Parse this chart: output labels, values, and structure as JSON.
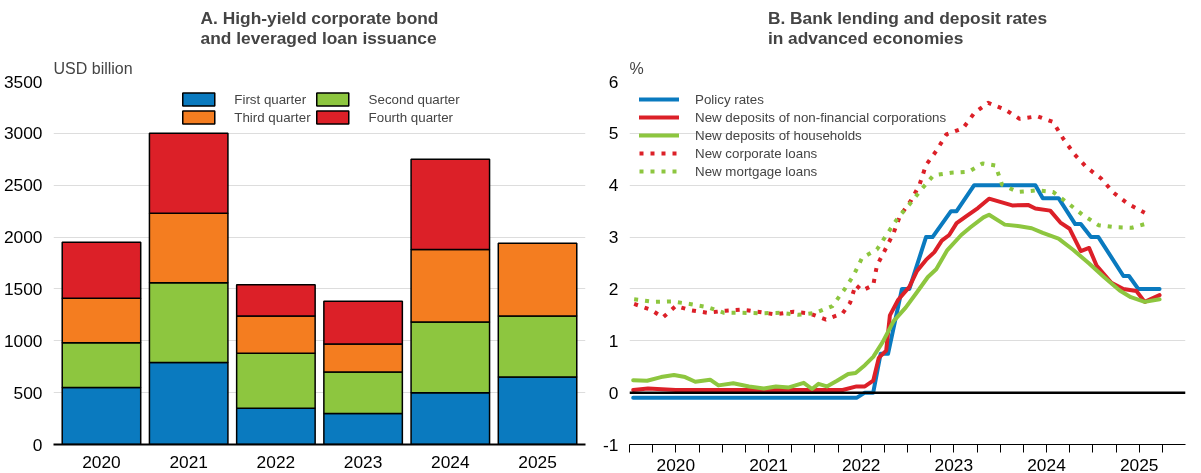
{
  "chart_data": [
    {
      "type": "bar",
      "title": "A. High-yield corporate bond\nand leveraged loan issuance",
      "ylabel": "USD billion",
      "stacked": true,
      "categories": [
        "2020",
        "2021",
        "2022",
        "2023",
        "2024",
        "2025"
      ],
      "series": [
        {
          "name": "First quarter",
          "color": "#0a7abf",
          "values": [
            550,
            790,
            350,
            300,
            500,
            650
          ]
        },
        {
          "name": "Second quarter",
          "color": "#8dc63f",
          "values": [
            430,
            770,
            530,
            400,
            680,
            590
          ]
        },
        {
          "name": "Third quarter",
          "color": "#f47d20",
          "values": [
            430,
            670,
            360,
            270,
            700,
            700
          ]
        },
        {
          "name": "Fourth quarter",
          "color": "#dc2028",
          "values": [
            540,
            770,
            300,
            410,
            870,
            null
          ]
        }
      ],
      "ylim": [
        0,
        3500
      ],
      "yticks": [
        0,
        500,
        1000,
        1500,
        2000,
        2500,
        3000,
        3500
      ],
      "grid": "y",
      "legend": "top"
    },
    {
      "type": "line",
      "title": "B. Bank lending and deposit rates\nin advanced economies",
      "ylabel": "%",
      "marker": "none",
      "series": [
        {
          "name": "Policy rates",
          "color": "#0a7abf",
          "line_style": "solid",
          "x": [
            2020.04,
            2022.45,
            2022.54,
            2022.63,
            2022.71,
            2022.79,
            2022.94,
            2023.02,
            2023.2,
            2023.27,
            2023.47,
            2023.53,
            2023.72,
            2024.38,
            2024.46,
            2024.63,
            2024.81,
            2024.87,
            2024.98,
            2025.06,
            2025.33,
            2025.39,
            2025.49,
            2025.72
          ],
          "values": [
            -0.1,
            -0.1,
            0,
            0,
            0.75,
            0.75,
            2,
            2,
            3,
            3,
            3.5,
            3.5,
            4,
            4,
            3.75,
            3.75,
            3.25,
            3.25,
            3,
            3,
            2.25,
            2.25,
            2,
            2
          ]
        },
        {
          "name": "New deposits of non-financial corporations",
          "color": "#dc2028",
          "line_style": "solid",
          "x": [
            2020.04,
            2020.2,
            2020.5,
            2021.0,
            2021.5,
            2022.0,
            2022.3,
            2022.45,
            2022.54,
            2022.63,
            2022.69,
            2022.77,
            2022.81,
            2022.9,
            2023.02,
            2023.1,
            2023.2,
            2023.29,
            2023.37,
            2023.45,
            2023.53,
            2023.64,
            2023.76,
            2023.88,
            2024.13,
            2024.3,
            2024.38,
            2024.54,
            2024.65,
            2024.75,
            2024.87,
            2024.96,
            2025.04,
            2025.2,
            2025.33,
            2025.47,
            2025.56,
            2025.72
          ],
          "values": [
            0.05,
            0.08,
            0.05,
            0.05,
            0.05,
            0.05,
            0.05,
            0.12,
            0.12,
            0.23,
            0.67,
            0.81,
            1.49,
            1.79,
            2.04,
            2.34,
            2.56,
            2.71,
            2.93,
            3.04,
            3.27,
            3.41,
            3.56,
            3.74,
            3.61,
            3.62,
            3.55,
            3.51,
            3.28,
            3.16,
            2.73,
            2.79,
            2.45,
            2.12,
            2.0,
            1.96,
            1.75,
            1.88
          ]
        },
        {
          "name": "New deposits of households",
          "color": "#8dc63f",
          "line_style": "solid",
          "x": [
            2020.04,
            2020.19,
            2020.34,
            2020.48,
            2020.6,
            2020.71,
            2020.87,
            2020.96,
            2021.12,
            2021.29,
            2021.45,
            2021.58,
            2021.72,
            2021.88,
            2021.97,
            2022.04,
            2022.13,
            2022.24,
            2022.36,
            2022.44,
            2022.54,
            2022.63,
            2022.73,
            2022.85,
            2022.98,
            2023.1,
            2023.22,
            2023.31,
            2023.43,
            2023.58,
            2023.68,
            2023.82,
            2023.88,
            2024.05,
            2024.21,
            2024.34,
            2024.46,
            2024.63,
            2024.79,
            2024.96,
            2025.12,
            2025.29,
            2025.41,
            2025.56,
            2025.72
          ],
          "values": [
            0.24,
            0.23,
            0.3,
            0.34,
            0.3,
            0.21,
            0.25,
            0.14,
            0.18,
            0.12,
            0.08,
            0.12,
            0.1,
            0.19,
            0.07,
            0.17,
            0.12,
            0.23,
            0.36,
            0.38,
            0.53,
            0.69,
            0.97,
            1.38,
            1.64,
            1.93,
            2.23,
            2.38,
            2.75,
            3.04,
            3.19,
            3.38,
            3.43,
            3.24,
            3.21,
            3.17,
            3.08,
            2.97,
            2.75,
            2.49,
            2.23,
            1.97,
            1.84,
            1.75,
            1.8
          ]
        },
        {
          "name": "New corporate loans",
          "color": "#dc2028",
          "line_style": "dotted",
          "x": [
            2020.05,
            2020.23,
            2020.36,
            2020.5,
            2020.66,
            2020.84,
            2021.04,
            2021.22,
            2021.38,
            2021.57,
            2021.77,
            2021.94,
            2022.12,
            2022.3,
            2022.38,
            2022.44,
            2022.51,
            2022.63,
            2022.67,
            2022.76,
            2022.85,
            2022.92,
            2023.04,
            2023.13,
            2023.2,
            2023.31,
            2023.42,
            2023.6,
            2023.72,
            2023.87,
            2024.05,
            2024.21,
            2024.4,
            2024.57,
            2024.68,
            2024.8,
            2024.93,
            2025.09,
            2025.22,
            2025.38,
            2025.56
          ],
          "values": [
            1.71,
            1.6,
            1.45,
            1.67,
            1.59,
            1.54,
            1.58,
            1.6,
            1.56,
            1.51,
            1.56,
            1.53,
            1.41,
            1.53,
            1.73,
            2.08,
            1.97,
            2.07,
            2.45,
            2.76,
            3.08,
            3.41,
            3.71,
            4.01,
            4.39,
            4.66,
            4.98,
            5.1,
            5.39,
            5.59,
            5.46,
            5.28,
            5.33,
            5.22,
            4.9,
            4.6,
            4.35,
            4.13,
            3.86,
            3.64,
            3.47
          ]
        },
        {
          "name": "New mortgage loans",
          "color": "#8dc63f",
          "line_style": "dotted",
          "x": [
            2020.05,
            2020.26,
            2020.45,
            2020.65,
            2020.84,
            2021.02,
            2021.21,
            2021.41,
            2021.62,
            2021.82,
            2022.01,
            2022.19,
            2022.32,
            2022.42,
            2022.51,
            2022.67,
            2022.78,
            2022.9,
            2023.03,
            2023.15,
            2023.28,
            2023.47,
            2023.66,
            2023.81,
            2023.95,
            2024.02,
            2024.19,
            2024.4,
            2024.57,
            2024.72,
            2024.89,
            2025.06,
            2025.24,
            2025.42,
            2025.6
          ],
          "values": [
            1.8,
            1.75,
            1.76,
            1.71,
            1.65,
            1.54,
            1.54,
            1.53,
            1.54,
            1.5,
            1.54,
            1.67,
            1.99,
            2.27,
            2.6,
            2.76,
            3.06,
            3.38,
            3.65,
            3.92,
            4.19,
            4.24,
            4.26,
            4.42,
            4.38,
            4.01,
            3.87,
            3.9,
            3.87,
            3.67,
            3.43,
            3.23,
            3.19,
            3.18,
            3.27
          ]
        }
      ],
      "xlim": [
        2020,
        2026
      ],
      "xticks": [
        {
          "value": 2020,
          "label": null
        },
        {
          "value": 2020.25,
          "label": null
        },
        {
          "value": 2020.5,
          "label": "2020"
        },
        {
          "value": 2020.75,
          "label": null
        },
        {
          "value": 2021,
          "label": null
        },
        {
          "value": 2021.25,
          "label": null
        },
        {
          "value": 2021.5,
          "label": "2021"
        },
        {
          "value": 2021.75,
          "label": null
        },
        {
          "value": 2022,
          "label": null
        },
        {
          "value": 2022.25,
          "label": null
        },
        {
          "value": 2022.5,
          "label": "2022"
        },
        {
          "value": 2022.75,
          "label": null
        },
        {
          "value": 2023,
          "label": null
        },
        {
          "value": 2023.25,
          "label": null
        },
        {
          "value": 2023.5,
          "label": "2023"
        },
        {
          "value": 2023.75,
          "label": null
        },
        {
          "value": 2024,
          "label": null
        },
        {
          "value": 2024.25,
          "label": null
        },
        {
          "value": 2024.5,
          "label": "2024"
        },
        {
          "value": 2024.75,
          "label": null
        },
        {
          "value": 2025,
          "label": null
        },
        {
          "value": 2025.25,
          "label": null
        },
        {
          "value": 2025.5,
          "label": "2025"
        },
        {
          "value": 2025.75,
          "label": null
        }
      ],
      "ylim": [
        -1,
        6
      ],
      "yticks": [
        -1,
        0,
        1,
        2,
        3,
        4,
        5,
        6
      ],
      "grid": "y",
      "legend": "top left",
      "ref_lines": [
        {
          "axis": "y",
          "value": 0,
          "color": "#000000"
        }
      ]
    }
  ]
}
